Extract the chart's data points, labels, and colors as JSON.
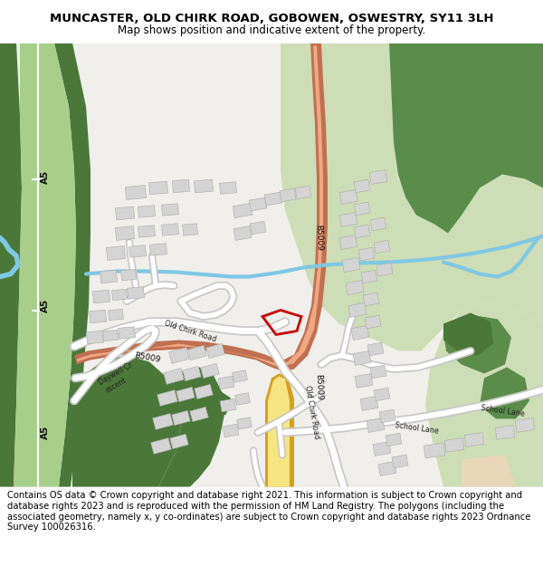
{
  "title_line1": "MUNCASTER, OLD CHIRK ROAD, GOBOWEN, OSWESTRY, SY11 3LH",
  "title_line2": "Map shows position and indicative extent of the property.",
  "footer_text": "Contains OS data © Crown copyright and database right 2021. This information is subject to Crown copyright and database rights 2023 and is reproduced with the permission of HM Land Registry. The polygons (including the associated geometry, namely x, y co-ordinates) are subject to Crown copyright and database rights 2023 Ordnance Survey 100026316.",
  "title_fontsize": 9.5,
  "subtitle_fontsize": 8.5,
  "footer_fontsize": 7.2,
  "map_bg": "#f0efeb"
}
